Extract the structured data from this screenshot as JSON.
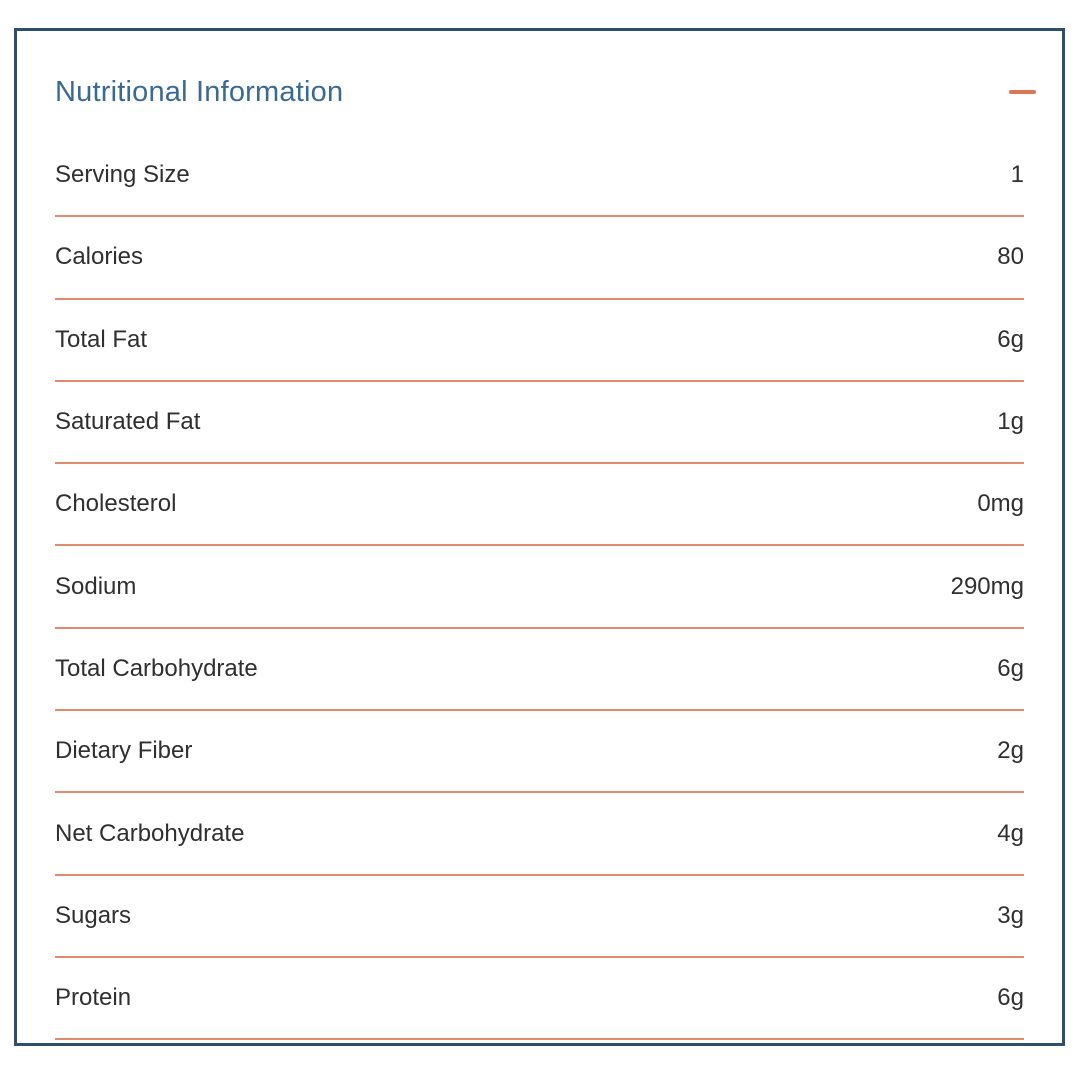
{
  "panel": {
    "title": "Nutritional Information",
    "collapse_icon": "minus-icon"
  },
  "rows": [
    {
      "label": "Serving Size",
      "value": "1"
    },
    {
      "label": "Calories",
      "value": "80"
    },
    {
      "label": "Total Fat",
      "value": "6g"
    },
    {
      "label": "Saturated Fat",
      "value": "1g"
    },
    {
      "label": "Cholesterol",
      "value": "0mg"
    },
    {
      "label": "Sodium",
      "value": "290mg"
    },
    {
      "label": "Total Carbohydrate",
      "value": "6g"
    },
    {
      "label": "Dietary Fiber",
      "value": "2g"
    },
    {
      "label": "Net Carbohydrate",
      "value": "4g"
    },
    {
      "label": "Sugars",
      "value": "3g"
    },
    {
      "label": "Protein",
      "value": "6g"
    }
  ],
  "colors": {
    "panel_border": "#2e4f6b",
    "header_text": "#386a94",
    "divider": "#e18a6f",
    "minus_icon": "#d97757",
    "row_text": "#2f2f2f"
  }
}
